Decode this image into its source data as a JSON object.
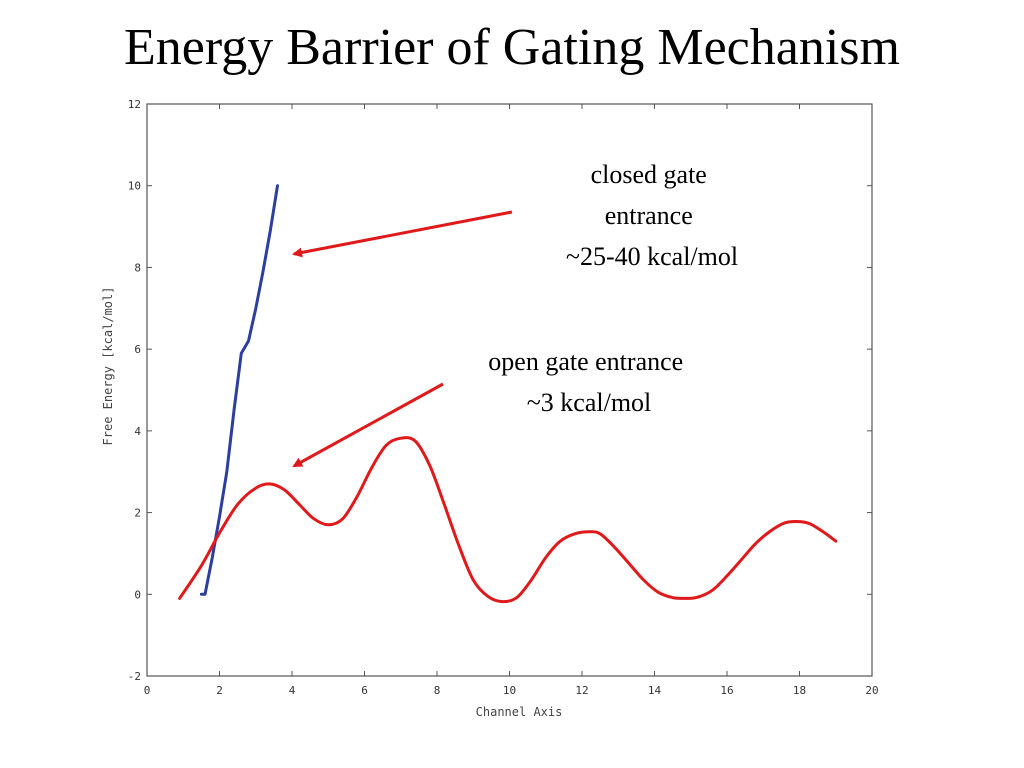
{
  "slide": {
    "title": "Energy Barrier of Gating Mechanism"
  },
  "colors": {
    "closed": "#2c3e9e",
    "open": "#e0191b",
    "arrow": "#e0191b",
    "axis": "#555555"
  },
  "chart_data": {
    "type": "line",
    "xlabel": "Channel Axis",
    "ylabel": "Free Energy [kcal/mol]",
    "xlim": [
      0,
      20
    ],
    "ylim": [
      -2,
      12
    ],
    "xticks": [
      0,
      2,
      4,
      6,
      8,
      10,
      12,
      14,
      16,
      18,
      20
    ],
    "yticks": [
      -2,
      0,
      2,
      4,
      6,
      8,
      10,
      12
    ],
    "grid": false,
    "series": [
      {
        "key": "closed",
        "x": [
          1.5,
          1.6,
          1.8,
          2.0,
          2.2,
          2.4,
          2.6,
          2.8,
          3.0,
          3.2,
          3.4,
          3.6
        ],
        "y": [
          0.0,
          0.0,
          0.9,
          1.9,
          3.0,
          4.5,
          5.9,
          6.2,
          7.0,
          7.9,
          8.9,
          10.0
        ]
      },
      {
        "key": "open",
        "x": [
          0.9,
          1.5,
          2.0,
          2.5,
          3.0,
          3.4,
          3.8,
          4.2,
          4.6,
          5.0,
          5.4,
          5.8,
          6.2,
          6.6,
          7.0,
          7.4,
          7.8,
          8.2,
          8.6,
          9.0,
          9.4,
          9.8,
          10.2,
          10.6,
          11.0,
          11.4,
          11.8,
          12.2,
          12.5,
          12.9,
          13.3,
          13.7,
          14.1,
          14.5,
          14.9,
          15.2,
          15.6,
          16.0,
          16.4,
          16.8,
          17.2,
          17.6,
          18.0,
          18.3,
          18.7,
          19.0
        ],
        "y": [
          -0.1,
          0.7,
          1.5,
          2.2,
          2.6,
          2.7,
          2.55,
          2.2,
          1.85,
          1.7,
          1.85,
          2.4,
          3.1,
          3.65,
          3.82,
          3.75,
          3.15,
          2.2,
          1.2,
          0.35,
          -0.05,
          -0.18,
          -0.08,
          0.35,
          0.9,
          1.3,
          1.48,
          1.53,
          1.48,
          1.15,
          0.75,
          0.35,
          0.05,
          -0.08,
          -0.1,
          -0.07,
          0.1,
          0.45,
          0.85,
          1.25,
          1.55,
          1.75,
          1.78,
          1.72,
          1.5,
          1.3
        ]
      }
    ],
    "annotations": [
      {
        "key": "closed",
        "lines": [
          "closed gate",
          "entrance",
          "~25-40 kcal/mol"
        ]
      },
      {
        "key": "open",
        "lines": [
          "open gate entrance",
          "~3 kcal/mol"
        ]
      }
    ]
  }
}
